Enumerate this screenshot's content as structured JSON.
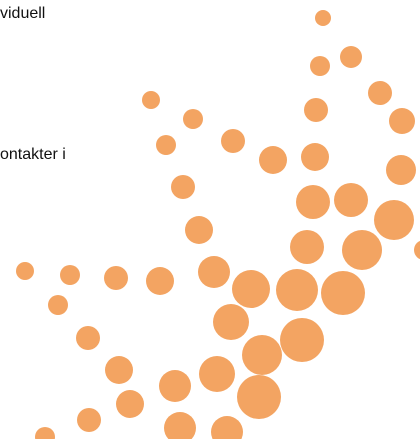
{
  "text": {
    "line_1": "viduell",
    "line_2": "ontakter i"
  }
}
